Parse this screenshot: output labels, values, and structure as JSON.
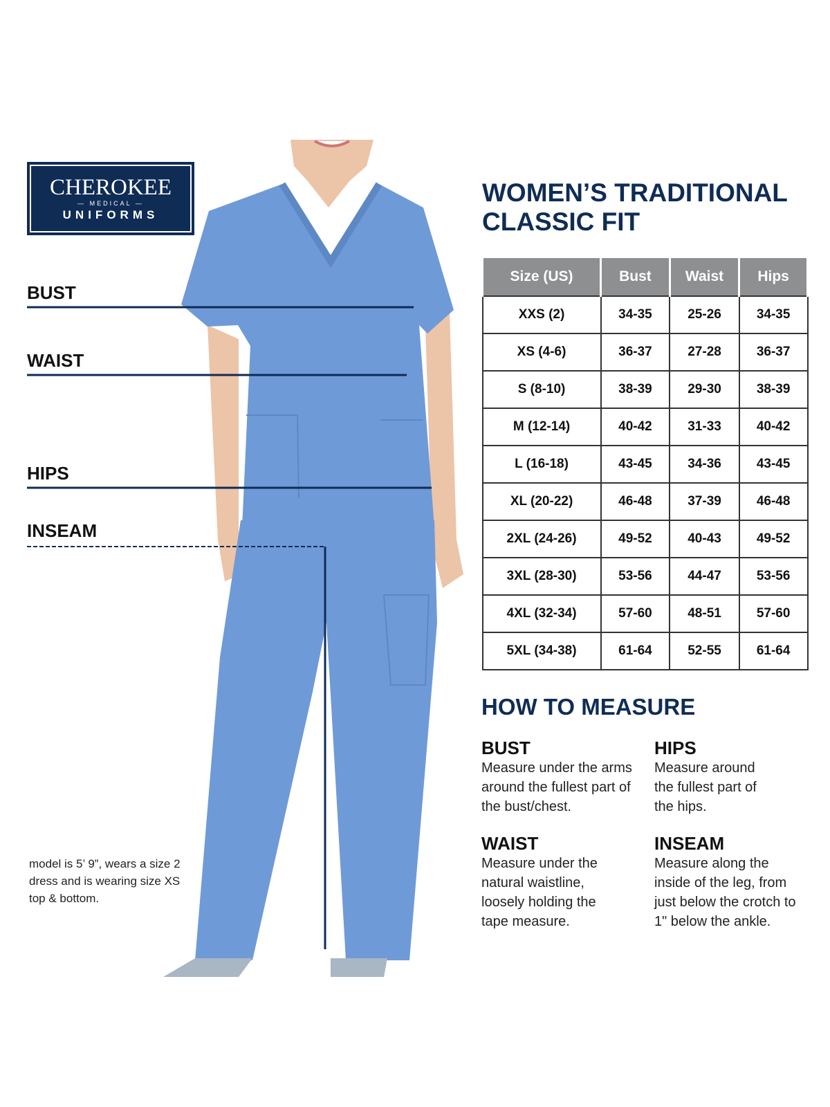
{
  "brand": {
    "name": "CHEROKEE",
    "line2": "MEDICAL",
    "line3": "UNIFORMS"
  },
  "measure_labels": [
    "BUST",
    "WAIST",
    "HIPS",
    "INSEAM"
  ],
  "model_note": "model is 5’ 9”, wears a size 2 dress and is wearing size XS top & bottom.",
  "title_line1": "WOMEN’S TRADITIONAL",
  "title_line2": "CLASSIC FIT",
  "size_table": {
    "headers": [
      "Size (US)",
      "Bust",
      "Waist",
      "Hips"
    ],
    "rows": [
      [
        "XXS (2)",
        "34-35",
        "25-26",
        "34-35"
      ],
      [
        "XS (4-6)",
        "36-37",
        "27-28",
        "36-37"
      ],
      [
        "S (8-10)",
        "38-39",
        "29-30",
        "38-39"
      ],
      [
        "M (12-14)",
        "40-42",
        "31-33",
        "40-42"
      ],
      [
        "L (16-18)",
        "43-45",
        "34-36",
        "43-45"
      ],
      [
        "XL (20-22)",
        "46-48",
        "37-39",
        "46-48"
      ],
      [
        "2XL (24-26)",
        "49-52",
        "40-43",
        "49-52"
      ],
      [
        "3XL (28-30)",
        "53-56",
        "44-47",
        "53-56"
      ],
      [
        "4XL (32-34)",
        "57-60",
        "48-51",
        "57-60"
      ],
      [
        "5XL (34-38)",
        "61-64",
        "52-55",
        "61-64"
      ]
    ]
  },
  "how_to_measure": {
    "title": "HOW TO MEASURE",
    "items": [
      {
        "heading": "BUST",
        "text": "Measure under the arms around the fullest part of the bust/chest."
      },
      {
        "heading": "HIPS",
        "text": "Measure around the fullest part of the hips."
      },
      {
        "heading": "WAIST",
        "text": "Measure under the natural waistline, loosely holding the tape measure."
      },
      {
        "heading": "INSEAM",
        "text": "Measure along the inside of the leg, from just below the crotch to 1\" below the ankle."
      }
    ]
  },
  "colors": {
    "navy": "#0f2c55",
    "scrub_blue": "#6f9ad8",
    "header_gray": "#8e8f91"
  }
}
